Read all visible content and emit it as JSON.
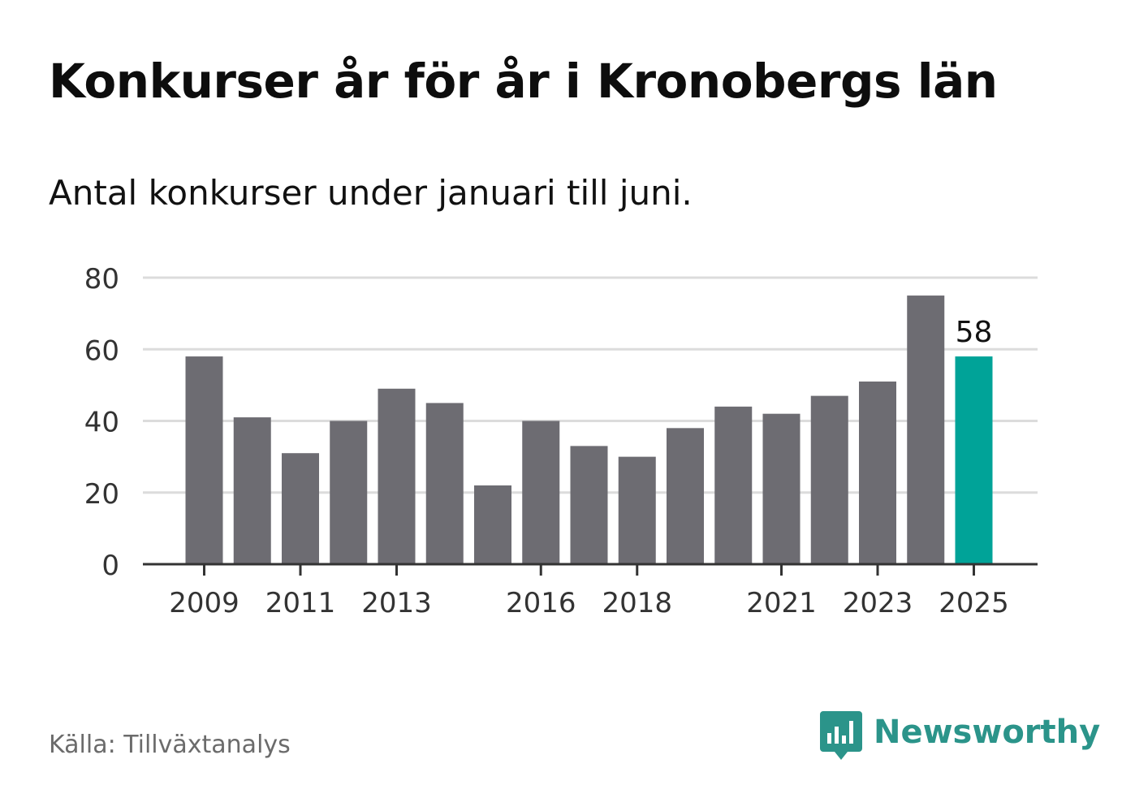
{
  "header": {
    "title": "Konkurser år för år i Kronobergs län",
    "subtitle": "Antal konkurser under januari till juni."
  },
  "footer": {
    "source": "Källa: Tillväxtanalys",
    "brand": "Newsworthy",
    "brand_icon": "newsworthy-logo-icon"
  },
  "colors": {
    "bar": "#6d6c72",
    "highlight": "#00a398",
    "grid": "#dcdcdc",
    "axis": "#333333",
    "brand": "#2b948a"
  },
  "chart_data": {
    "type": "bar",
    "title": "Konkurser år för år i Kronobergs län",
    "subtitle": "Antal konkurser under januari till juni.",
    "categories": [
      "2009",
      "2010",
      "2011",
      "2012",
      "2013",
      "2014",
      "2015",
      "2016",
      "2017",
      "2018",
      "2019",
      "2020",
      "2021",
      "2022",
      "2023",
      "2024",
      "2025"
    ],
    "values": [
      58,
      41,
      31,
      40,
      49,
      45,
      22,
      40,
      33,
      30,
      38,
      44,
      42,
      47,
      51,
      75,
      58
    ],
    "highlight_index": 16,
    "highlight_label": "58",
    "x_tick_labels": [
      "2009",
      "2011",
      "2013",
      "2016",
      "2018",
      "2021",
      "2023",
      "2025"
    ],
    "y_ticks": [
      0,
      20,
      40,
      60,
      80
    ],
    "ylim": [
      0,
      80
    ],
    "xlabel": "",
    "ylabel": "",
    "grid": true,
    "legend": "none"
  }
}
